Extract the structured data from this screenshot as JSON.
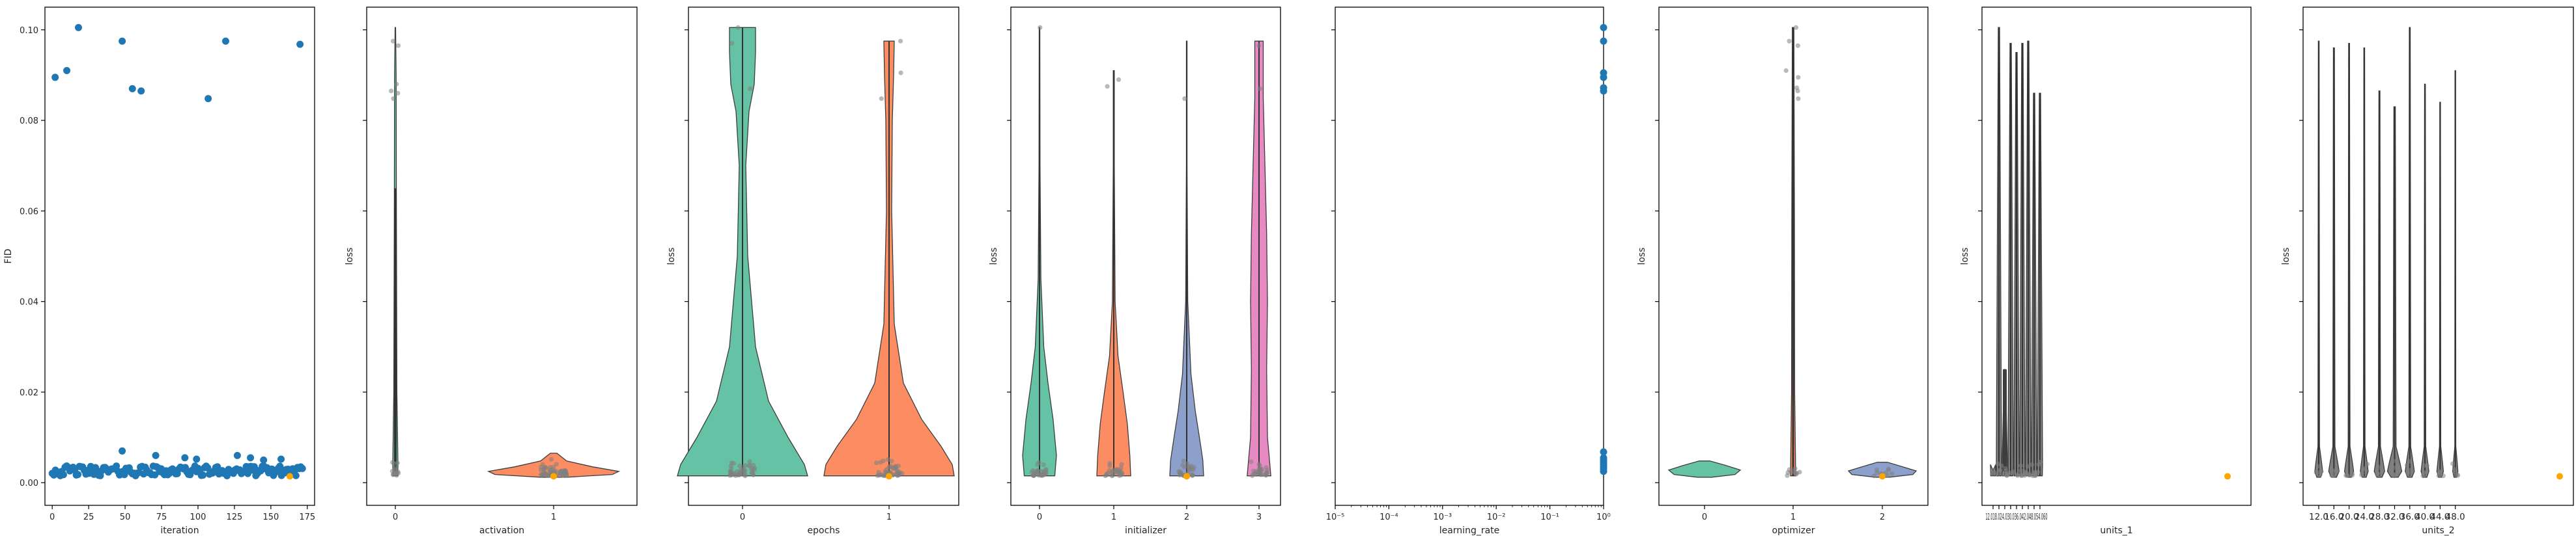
{
  "colors": {
    "point_blue": "#1f77b4",
    "best_orange": "#ffa500",
    "strip_gray": "#808080",
    "violin_green": "#66c2a5",
    "violin_orange": "#fc8d62",
    "violin_blue": "#8da0cb",
    "violin_pink": "#e78ac3"
  },
  "chart_data": [
    {
      "type": "scatter",
      "xlabel": "iteration",
      "ylabel": "FID",
      "xlim": [
        -5,
        180
      ],
      "ylim": [
        -0.005,
        0.105
      ],
      "xticks": [
        0,
        25,
        50,
        75,
        100,
        125,
        150,
        175
      ],
      "yticks": [
        0.0,
        0.02,
        0.04,
        0.06,
        0.08,
        0.1
      ],
      "ytick_labels": [
        "0.00",
        "0.02",
        "0.04",
        "0.06",
        "0.08",
        "0.10"
      ],
      "high_points": [
        [
          2,
          0.0895
        ],
        [
          10,
          0.091
        ],
        [
          18,
          0.1005
        ],
        [
          48,
          0.0975
        ],
        [
          55,
          0.087
        ],
        [
          61,
          0.0865
        ],
        [
          107,
          0.0848
        ],
        [
          119,
          0.0975
        ],
        [
          170,
          0.0968
        ]
      ],
      "mid_points": [
        [
          48,
          0.007
        ],
        [
          71,
          0.006
        ],
        [
          91,
          0.0055
        ],
        [
          99,
          0.0052
        ],
        [
          127,
          0.006
        ],
        [
          136,
          0.0055
        ],
        [
          145,
          0.005
        ],
        [
          157,
          0.0052
        ]
      ],
      "best_point": [
        163,
        0.0014
      ]
    },
    {
      "type": "violin",
      "xlabel": "activation",
      "ylabel": "loss",
      "ylim": [
        -0.005,
        0.105
      ],
      "categories": [
        "0",
        "1"
      ],
      "best_point": [
        1,
        0.0014
      ]
    },
    {
      "type": "violin",
      "xlabel": "epochs",
      "ylabel": "loss",
      "ylim": [
        -0.005,
        0.105
      ],
      "categories": [
        "0",
        "1"
      ],
      "best_point": [
        1,
        0.0014
      ]
    },
    {
      "type": "violin",
      "xlabel": "initializer",
      "ylabel": "loss",
      "ylim": [
        -0.005,
        0.105
      ],
      "categories": [
        "0",
        "1",
        "2",
        "3"
      ],
      "best_point": [
        2,
        0.0014
      ]
    },
    {
      "type": "scatter",
      "xlabel": "learning_rate",
      "ylabel": "",
      "xscale": "log",
      "xlim": [
        1e-05,
        1
      ],
      "ylim": [
        -0.005,
        0.105
      ],
      "xtick_labels": [
        "10⁻⁵",
        "10⁻⁴",
        "10⁻³",
        "10⁻²",
        "10⁻¹",
        "10⁰"
      ],
      "points_y": [
        0.1005,
        0.0975,
        0.0905,
        0.0895,
        0.0872,
        0.0865,
        0.0068,
        0.0055,
        0.005,
        0.0045,
        0.004,
        0.0035,
        0.003,
        0.0025
      ]
    },
    {
      "type": "violin",
      "xlabel": "optimizer",
      "ylabel": "loss",
      "ylim": [
        -0.005,
        0.105
      ],
      "categories": [
        "0",
        "1",
        "2"
      ],
      "best_point": [
        2,
        0.0014
      ]
    },
    {
      "type": "violin",
      "xlabel": "units_1",
      "ylabel": "loss",
      "ylim": [
        -0.005,
        0.105
      ],
      "tick_label_text": "12.018.024.030.036.042.048.054.060",
      "best_point_y": 0.0014
    },
    {
      "type": "violin",
      "xlabel": "units_2",
      "ylabel": "loss",
      "ylim": [
        -0.005,
        0.105
      ],
      "categories": [
        "12.0",
        "16.0",
        "20.0",
        "24.0",
        "28.0",
        "32.0",
        "36.0",
        "40.0",
        "44.0",
        "48.0"
      ],
      "best_point_y": 0.0014
    }
  ]
}
